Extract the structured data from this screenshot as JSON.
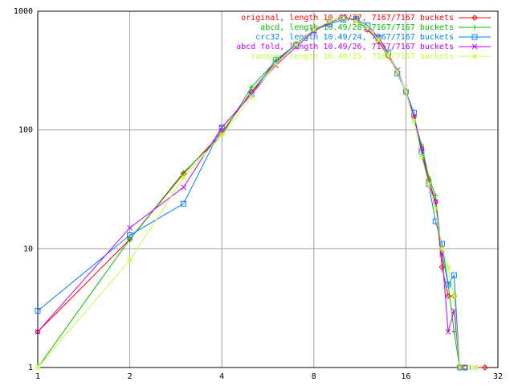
{
  "chart_data": {
    "type": "line",
    "xscale": "log",
    "yscale": "log",
    "grid": true,
    "legend": "top-right",
    "xlim": [
      1,
      32
    ],
    "xticks": [
      1,
      2,
      4,
      8,
      16,
      32
    ],
    "ylim": [
      1,
      1000
    ],
    "yticks": [
      1,
      10,
      100,
      1000
    ],
    "series": [
      {
        "name": "original, length 10.49/27, 7167/7167 buckets",
        "color": "#ff0000",
        "marker": "diamond",
        "x": [
          1,
          2,
          3,
          4,
          5,
          6,
          7,
          8,
          9,
          10,
          11,
          12,
          13,
          14,
          15,
          16,
          17,
          18,
          19,
          20,
          21,
          22,
          23,
          24,
          25,
          29
        ],
        "values": [
          2,
          12,
          43,
          95,
          210,
          370,
          530,
          700,
          820,
          870,
          850,
          700,
          560,
          420,
          310,
          210,
          130,
          70,
          38,
          25,
          7,
          4,
          4,
          1,
          1,
          1
        ]
      },
      {
        "name": "abcd, length 10.49/28, 7167/7167 buckets",
        "color": "#00c000",
        "marker": "plus",
        "x": [
          1,
          2,
          3,
          4,
          5,
          6,
          7,
          8,
          9,
          10,
          11,
          12,
          13,
          14,
          15,
          16,
          17,
          18,
          19,
          20,
          21,
          22,
          23,
          24,
          26
        ],
        "values": [
          1,
          12,
          44,
          90,
          230,
          380,
          530,
          690,
          800,
          880,
          840,
          720,
          580,
          440,
          310,
          210,
          125,
          75,
          40,
          28,
          9,
          5,
          2,
          1,
          1
        ]
      },
      {
        "name": "crc32, length 10.49/24, 7167/7167 buckets",
        "color": "#0080ff",
        "marker": "square",
        "x": [
          1,
          2,
          3,
          4,
          5,
          6,
          7,
          8,
          9,
          10,
          11,
          12,
          13,
          14,
          15,
          16,
          17,
          18,
          19,
          20,
          21,
          22,
          23,
          24,
          25
        ],
        "values": [
          3,
          13,
          24,
          105,
          200,
          390,
          520,
          690,
          780,
          850,
          860,
          760,
          600,
          450,
          300,
          210,
          140,
          65,
          35,
          17,
          11,
          5,
          6,
          1,
          1
        ]
      },
      {
        "name": "abcd fold, length 10.49/26, 7167/7167 buckets",
        "color": "#c000ff",
        "marker": "cross",
        "x": [
          1,
          2,
          3,
          4,
          5,
          6,
          7,
          8,
          9,
          10,
          11,
          12,
          13,
          14,
          15,
          16,
          17,
          18,
          19,
          20,
          21,
          22,
          23,
          24,
          27
        ],
        "values": [
          2,
          15,
          33,
          105,
          200,
          350,
          500,
          680,
          800,
          900,
          830,
          700,
          600,
          430,
          320,
          210,
          130,
          70,
          35,
          25,
          9,
          2,
          3,
          1,
          1
        ]
      },
      {
        "name": "random, length 10.49/25, 7167/7167 buckets",
        "color": "#c0ff40",
        "marker": "star",
        "x": [
          1,
          2,
          3,
          4,
          5,
          6,
          7,
          8,
          9,
          10,
          11,
          12,
          13,
          14,
          15,
          16,
          17,
          18,
          19,
          20,
          21,
          22,
          23,
          24,
          27
        ],
        "values": [
          1,
          8,
          40,
          90,
          190,
          360,
          520,
          700,
          820,
          880,
          820,
          720,
          580,
          430,
          310,
          210,
          120,
          60,
          35,
          22,
          10,
          7,
          4,
          1,
          1
        ]
      }
    ]
  }
}
